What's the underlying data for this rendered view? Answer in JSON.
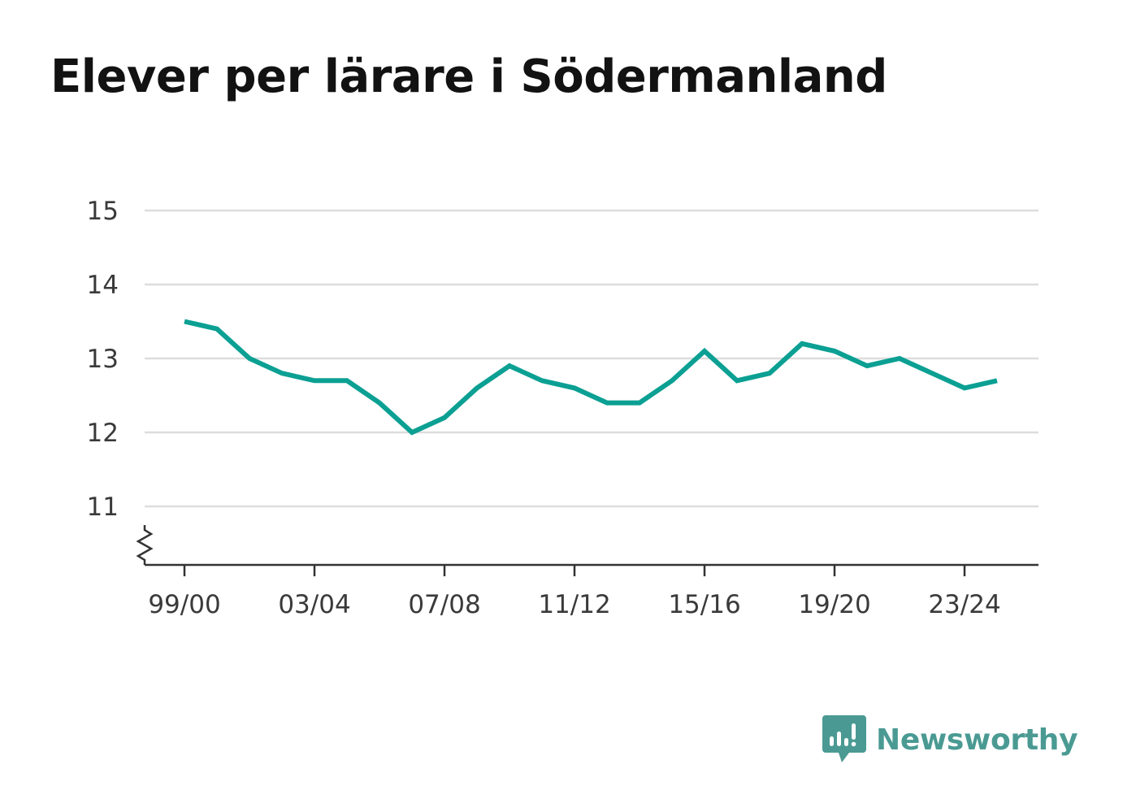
{
  "title": "Elever per lärare i Södermanland",
  "brand": {
    "name": "Newsworthy",
    "color": "#4a9a93",
    "icon": "newsworthy-logo-icon"
  },
  "colors": {
    "line": "#0ba093",
    "grid": "#dddddd",
    "axis": "#333333"
  },
  "chart_data": {
    "type": "line",
    "title": "Elever per lärare i Södermanland",
    "xlabel": "",
    "ylabel": "",
    "ylim": [
      10.2,
      15
    ],
    "y_axis_break": true,
    "grid": true,
    "yticks": [
      11,
      12,
      13,
      14,
      15
    ],
    "xticks": [
      "99/00",
      "03/04",
      "07/08",
      "11/12",
      "15/16",
      "19/20",
      "23/24"
    ],
    "x": [
      "99/00",
      "00/01",
      "01/02",
      "02/03",
      "03/04",
      "04/05",
      "05/06",
      "06/07",
      "07/08",
      "08/09",
      "09/10",
      "10/11",
      "11/12",
      "12/13",
      "13/14",
      "14/15",
      "15/16",
      "16/17",
      "17/18",
      "18/19",
      "19/20",
      "20/21",
      "21/22",
      "22/23",
      "23/24",
      "24/25"
    ],
    "series": [
      {
        "values": [
          13.5,
          13.4,
          13.0,
          12.8,
          12.7,
          12.7,
          12.4,
          12.0,
          12.2,
          12.6,
          12.9,
          12.7,
          12.6,
          12.4,
          12.4,
          12.7,
          13.1,
          12.7,
          12.8,
          13.2,
          13.1,
          12.9,
          13.0,
          12.8,
          12.6,
          12.7
        ]
      }
    ]
  }
}
